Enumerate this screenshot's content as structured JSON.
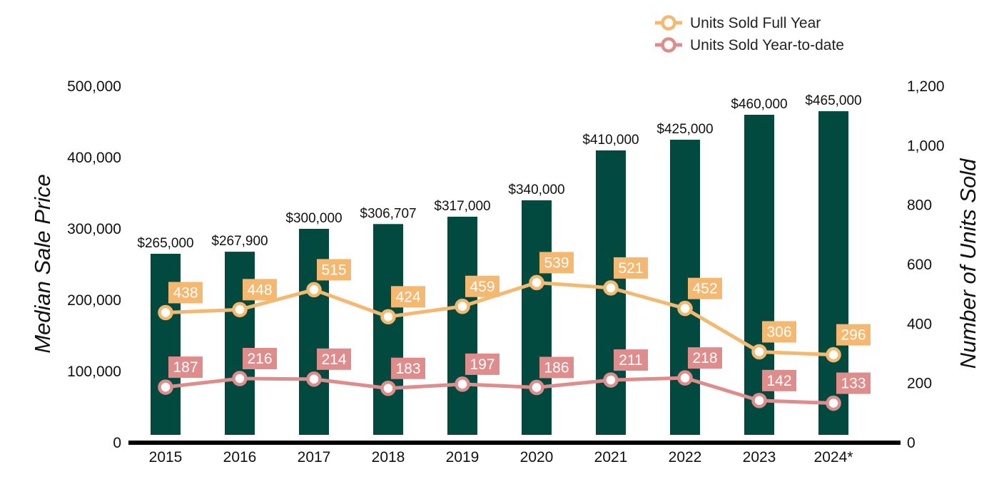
{
  "chart_data": {
    "type": "bar",
    "categories": [
      "2015",
      "2016",
      "2017",
      "2018",
      "2019",
      "2020",
      "2021",
      "2022",
      "2023",
      "2024*"
    ],
    "ylabel": "Median Sale Price",
    "y2label": "Number of Units Sold",
    "ylim": [
      0,
      500000
    ],
    "y2lim": [
      0,
      1200
    ],
    "yticks": [
      "0",
      "100,000",
      "200,000",
      "300,000",
      "400,000",
      "500,000"
    ],
    "y2ticks": [
      "0",
      "200",
      "400",
      "600",
      "800",
      "1,000",
      "1,200"
    ],
    "bar_series": {
      "values": [
        265000,
        267900,
        300000,
        306707,
        317000,
        340000,
        410000,
        425000,
        460000,
        465000
      ],
      "labels": [
        "$265,000",
        "$267,900",
        "$300,000",
        "$306,707",
        "$317,000",
        "$340,000",
        "$410,000",
        "$425,000",
        "$460,000",
        "$465,000"
      ],
      "color": "#024a3f"
    },
    "series": [
      {
        "name": "Units Sold Full Year",
        "type": "line",
        "axis": "right",
        "values": [
          438,
          448,
          515,
          424,
          459,
          539,
          521,
          452,
          306,
          296
        ],
        "labels": [
          "438",
          "448",
          "515",
          "424",
          "459",
          "539",
          "521",
          "452",
          "306",
          "296"
        ],
        "color": "#f5b870"
      },
      {
        "name": "Units Sold Year-to-date",
        "type": "line",
        "axis": "right",
        "values": [
          187,
          216,
          214,
          183,
          197,
          186,
          211,
          218,
          142,
          133
        ],
        "labels": [
          "187",
          "216",
          "214",
          "183",
          "197",
          "186",
          "211",
          "218",
          "142",
          "133"
        ],
        "color": "#df8c8c"
      }
    ],
    "legend": "top-right",
    "grid": false
  }
}
